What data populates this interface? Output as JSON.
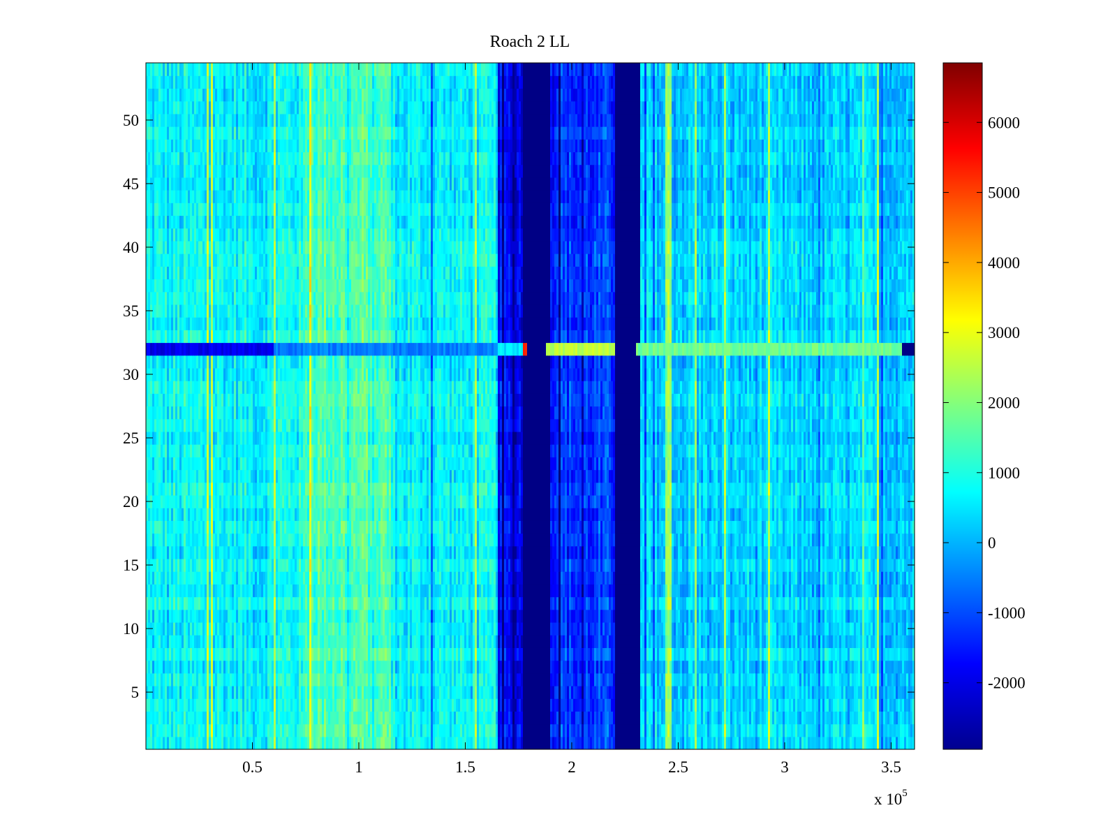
{
  "chart_data": {
    "type": "heatmap",
    "title": "Roach 2 LL",
    "xlabel": "",
    "ylabel": "",
    "x_exponent_label": "x 10",
    "x_exponent": "5",
    "xlim": [
      0,
      361000
    ],
    "ylim": [
      0.5,
      54.5
    ],
    "x_ticks": [
      50000,
      100000,
      150000,
      200000,
      250000,
      300000,
      350000
    ],
    "x_tick_labels": [
      "0.5",
      "1",
      "1.5",
      "2",
      "2.5",
      "3",
      "3.5"
    ],
    "y_ticks": [
      5,
      10,
      15,
      20,
      25,
      30,
      35,
      40,
      45,
      50
    ],
    "y_tick_labels": [
      "5",
      "10",
      "15",
      "20",
      "25",
      "30",
      "35",
      "40",
      "45",
      "50"
    ],
    "colormap": "jet",
    "clim": [
      -2950,
      6850
    ],
    "colorbar_ticks": [
      -2000,
      -1000,
      0,
      1000,
      2000,
      3000,
      4000,
      5000,
      6000
    ],
    "colorbar_tick_labels": [
      "-2000",
      "-1000",
      "0",
      "1000",
      "2000",
      "3000",
      "4000",
      "5000",
      "6000"
    ],
    "rows": 54,
    "regions": [
      {
        "x": [
          0,
          60000
        ],
        "value": 700
      },
      {
        "x": [
          60000,
          75000
        ],
        "value": 900
      },
      {
        "x": [
          75000,
          115000
        ],
        "value": 1500
      },
      {
        "x": [
          115000,
          165000
        ],
        "value": 700
      },
      {
        "x": [
          165000,
          177000
        ],
        "value": -1800
      },
      {
        "x": [
          177000,
          190000
        ],
        "value": -2900
      },
      {
        "x": [
          190000,
          220000
        ],
        "value": -1200
      },
      {
        "x": [
          220000,
          232000
        ],
        "value": -2900
      },
      {
        "x": [
          232000,
          361000
        ],
        "value": 300
      }
    ],
    "row_32_values": [
      {
        "x": [
          0,
          60000
        ],
        "value": -1900
      },
      {
        "x": [
          60000,
          165000
        ],
        "value": -500
      },
      {
        "x": [
          165000,
          177000
        ],
        "value": 500
      },
      {
        "x": [
          177000,
          179000
        ],
        "value": 5500
      },
      {
        "x": [
          188000,
          220000
        ],
        "value": 2500
      },
      {
        "x": [
          230000,
          355000
        ],
        "value": 1800
      }
    ]
  },
  "colors": {
    "axes": "#000000",
    "background": "#ffffff"
  }
}
